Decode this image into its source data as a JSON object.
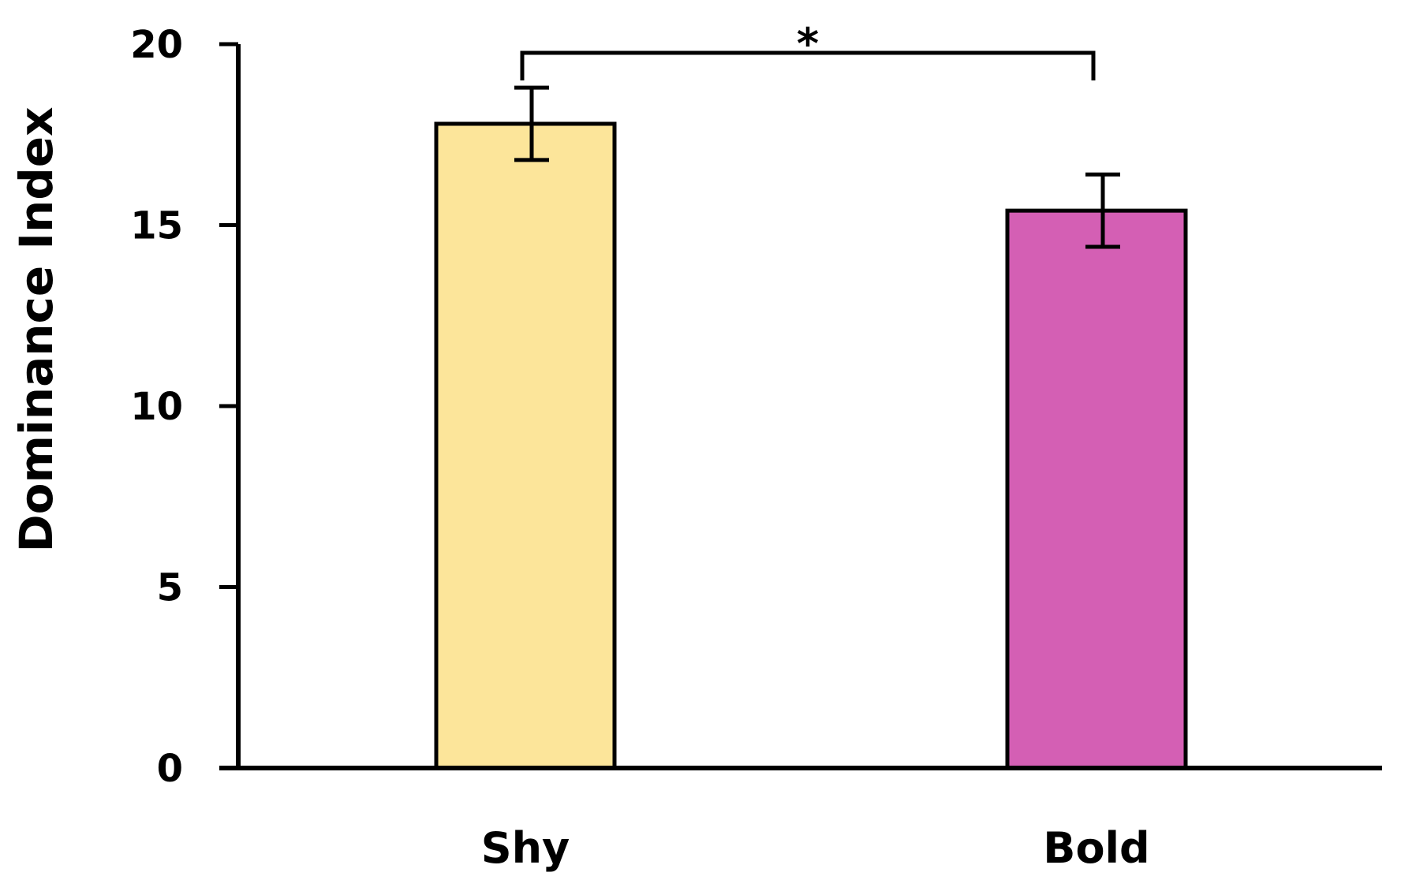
{
  "chart_data": {
    "type": "bar",
    "categories": [
      "Shy",
      "Bold"
    ],
    "values": [
      17.8,
      15.4
    ],
    "error": [
      1.0,
      1.0
    ],
    "colors": [
      "#fce59a",
      "#d45fb4"
    ],
    "ylabel": "Dominance Index",
    "ylim": [
      0,
      20
    ],
    "yticks": [
      0,
      5,
      10,
      15,
      20
    ],
    "grid": false,
    "significance": {
      "label": "*",
      "between": [
        0,
        1
      ]
    }
  }
}
